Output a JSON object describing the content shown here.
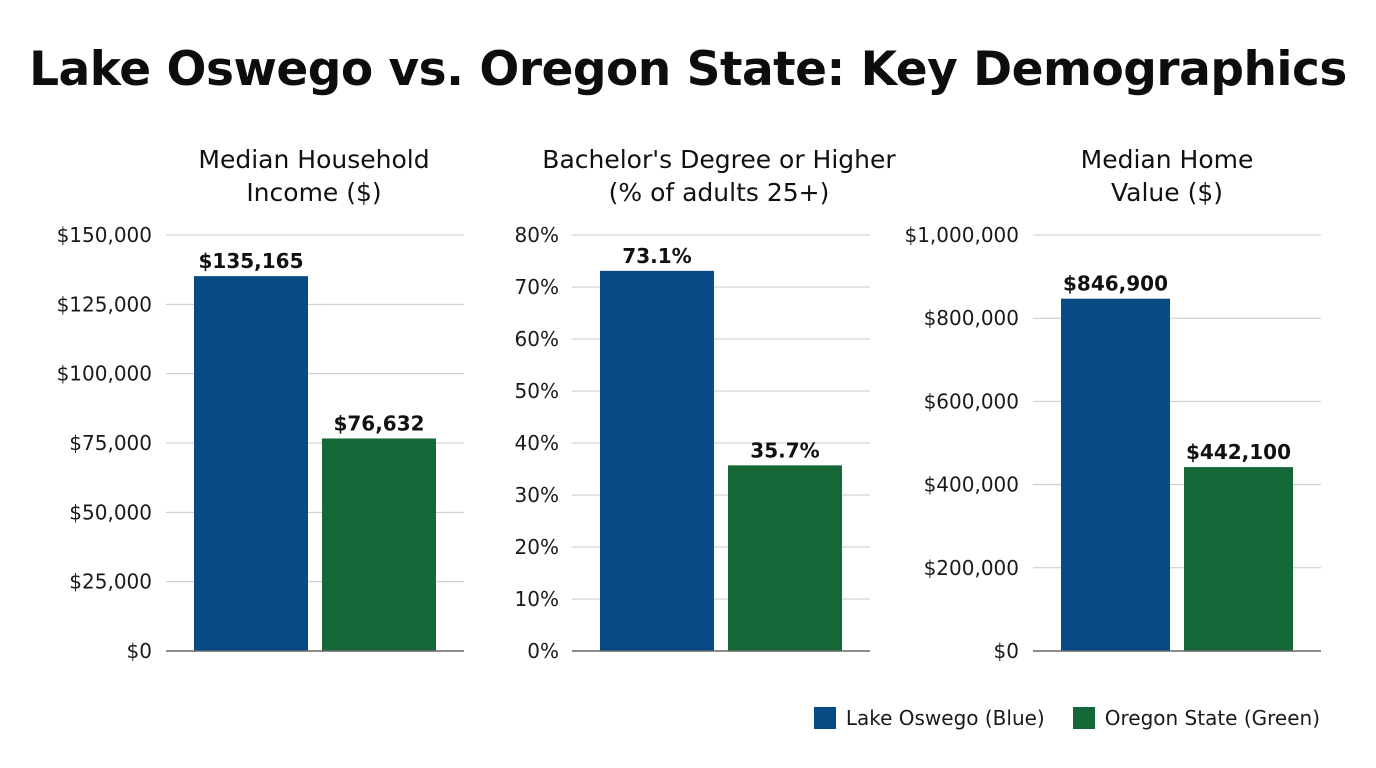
{
  "title": "Lake Oswego vs. Oregon State: Key Demographics",
  "colors": {
    "lake_oswego": "#074a86",
    "oregon_state": "#166738",
    "grid": "#c8c8c8",
    "axis": "#666666"
  },
  "legend": [
    {
      "label": "Lake Oswego (Blue)",
      "color": "#074a86"
    },
    {
      "label": "Oregon State (Green)",
      "color": "#166738"
    }
  ],
  "chart_data": [
    {
      "type": "bar",
      "title": [
        "Median Household",
        "Income ($)"
      ],
      "categories": [
        "Lake Oswego",
        "Oregon State"
      ],
      "values": [
        135165,
        76632
      ],
      "value_labels": [
        "$135,165",
        "$76,632"
      ],
      "ylim": [
        0,
        150000
      ],
      "yticks": [
        0,
        25000,
        50000,
        75000,
        100000,
        125000,
        150000
      ],
      "ytick_labels": [
        "$0",
        "$25,000",
        "$50,000",
        "$75,000",
        "$100,000",
        "$125,000",
        "$150,000"
      ],
      "grid": true
    },
    {
      "type": "bar",
      "title": [
        "Bachelor's Degree or Higher",
        "(% of adults 25+)"
      ],
      "categories": [
        "Lake Oswego",
        "Oregon State"
      ],
      "values": [
        73.1,
        35.7
      ],
      "value_labels": [
        "73.1%",
        "35.7%"
      ],
      "ylim": [
        0,
        80
      ],
      "yticks": [
        0,
        10,
        20,
        30,
        40,
        50,
        60,
        70,
        80
      ],
      "ytick_labels": [
        "0%",
        "10%",
        "20%",
        "30%",
        "40%",
        "50%",
        "60%",
        "70%",
        "80%"
      ],
      "grid": true
    },
    {
      "type": "bar",
      "title": [
        "Median Home",
        "Value ($)"
      ],
      "categories": [
        "Lake Oswego",
        "Oregon State"
      ],
      "values": [
        846900,
        442100
      ],
      "value_labels": [
        "$846,900",
        "$442,100"
      ],
      "ylim": [
        0,
        1000000
      ],
      "yticks": [
        0,
        200000,
        400000,
        600000,
        800000,
        1000000
      ],
      "ytick_labels": [
        "$0",
        "$200,000",
        "$400,000",
        "$600,000",
        "$800,000",
        "$1,000,000"
      ],
      "grid": true
    }
  ]
}
